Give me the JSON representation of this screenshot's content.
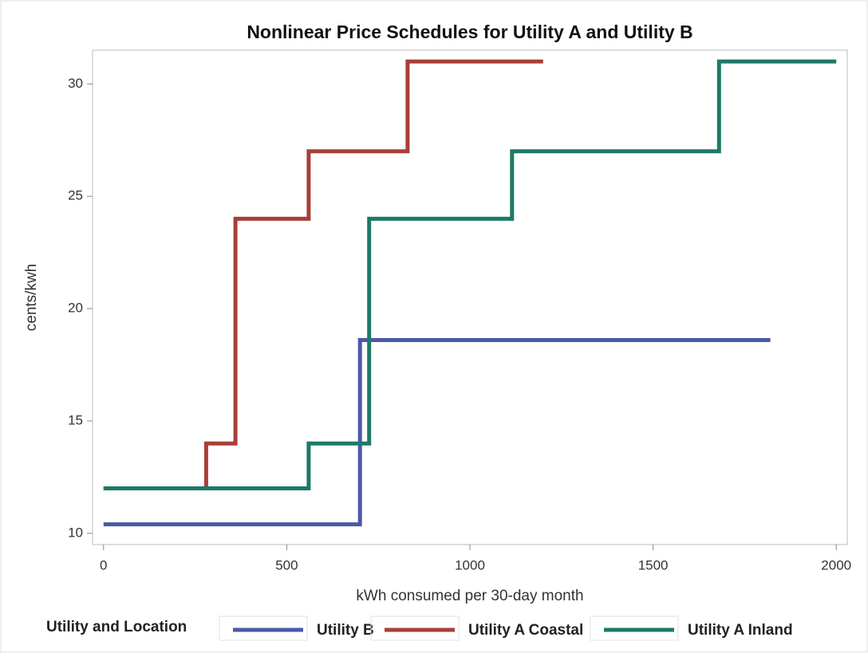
{
  "chart_data": {
    "type": "line",
    "step": true,
    "title": "Nonlinear Price Schedules for Utility A and Utility B",
    "x_label": "kWh consumed per 30-day month",
    "y_label": "cents/kwh",
    "legend_title": "Utility and Location",
    "legend": "bottom",
    "xlim": [
      -30,
      2030
    ],
    "ylim": [
      9.5,
      31.5
    ],
    "xticks": [
      0,
      500,
      1000,
      1500,
      2000
    ],
    "yticks": [
      10,
      15,
      20,
      25,
      30
    ],
    "grid": false,
    "series": [
      {
        "name": "Utility B",
        "color": "#4b58a6",
        "x": [
          0,
          700,
          700,
          1820
        ],
        "values": [
          10.4,
          10.4,
          18.6,
          18.6
        ]
      },
      {
        "name": "Utility A Coastal",
        "color": "#a83f38",
        "x": [
          0,
          280,
          280,
          360,
          360,
          560,
          560,
          830,
          830,
          1200
        ],
        "values": [
          12,
          12,
          14,
          14,
          24,
          24,
          27,
          27,
          31,
          31
        ]
      },
      {
        "name": "Utility A Inland",
        "color": "#1c7a67",
        "x": [
          0,
          560,
          560,
          725,
          725,
          1115,
          1115,
          1680,
          1680,
          2000
        ],
        "values": [
          12,
          12,
          14,
          14,
          24,
          24,
          27,
          27,
          31,
          31
        ]
      }
    ]
  }
}
